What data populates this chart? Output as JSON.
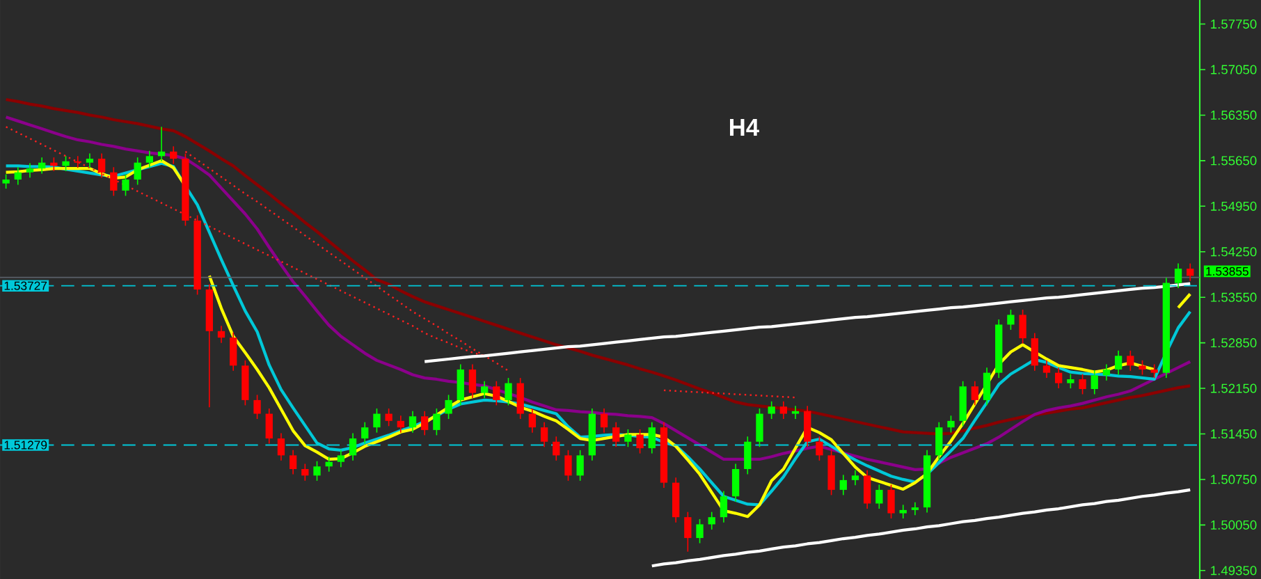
{
  "chart_data": {
    "type": "candlestick",
    "title": "H4",
    "categories": [
      null,
      null,
      null,
      null,
      null,
      null,
      null,
      null,
      null,
      null,
      null,
      null,
      null,
      null,
      null,
      null,
      null,
      null,
      null,
      null,
      null,
      null,
      null,
      null,
      null,
      null,
      null,
      null,
      null,
      null,
      null,
      null,
      null,
      null,
      null,
      null,
      null,
      null,
      null,
      null,
      null,
      null,
      null,
      null,
      null,
      null,
      null,
      null,
      null,
      null,
      null,
      null,
      null,
      null,
      null,
      null,
      null,
      null,
      null,
      null,
      null,
      null,
      null,
      null,
      null,
      null,
      null,
      null,
      null,
      null,
      null,
      null,
      null,
      null,
      null,
      null,
      null,
      null,
      null,
      null,
      null,
      null,
      null,
      null,
      null,
      null,
      null,
      null,
      null,
      null,
      null,
      null,
      null,
      null,
      null,
      null,
      null,
      null,
      null,
      null
    ],
    "ohlc": [
      [
        1.553,
        1.5544,
        1.5522,
        1.5536
      ],
      [
        1.5536,
        1.5555,
        1.5528,
        1.5547
      ],
      [
        1.5547,
        1.5561,
        1.5539,
        1.5553
      ],
      [
        1.5553,
        1.557,
        1.5545,
        1.5562
      ],
      [
        1.5562,
        1.557,
        1.5549,
        1.5557
      ],
      [
        1.5557,
        1.5572,
        1.5549,
        1.5564
      ],
      [
        1.5564,
        1.5572,
        1.5554,
        1.5562
      ],
      [
        1.5562,
        1.5576,
        1.5554,
        1.5568
      ],
      [
        1.5568,
        1.5576,
        1.5539,
        1.5547
      ],
      [
        1.5547,
        1.5555,
        1.5511,
        1.5519
      ],
      [
        1.5519,
        1.5544,
        1.5511,
        1.5536
      ],
      [
        1.5536,
        1.557,
        1.5528,
        1.5562
      ],
      [
        1.5562,
        1.558,
        1.5554,
        1.5572
      ],
      [
        1.5572,
        1.5617,
        1.5564,
        1.5579
      ],
      [
        1.5579,
        1.5587,
        1.556,
        1.5568
      ],
      [
        1.5568,
        1.5576,
        1.5465,
        1.5473
      ],
      [
        1.5473,
        1.5481,
        1.5359,
        1.5367
      ],
      [
        1.5367,
        1.5375,
        1.5186,
        1.5303
      ],
      [
        1.5303,
        1.5311,
        1.5285,
        1.5293
      ],
      [
        1.5293,
        1.5301,
        1.5242,
        1.525
      ],
      [
        1.525,
        1.5258,
        1.5189,
        1.5197
      ],
      [
        1.5197,
        1.5205,
        1.5168,
        1.5176
      ],
      [
        1.5176,
        1.5184,
        1.513,
        1.5138
      ],
      [
        1.5138,
        1.5146,
        1.5104,
        1.5112
      ],
      [
        1.5112,
        1.512,
        1.5083,
        1.5091
      ],
      [
        1.5091,
        1.5099,
        1.5073,
        1.5081
      ],
      [
        1.5081,
        1.5103,
        1.5073,
        1.5095
      ],
      [
        1.5095,
        1.511,
        1.5087,
        1.5102
      ],
      [
        1.5102,
        1.512,
        1.5094,
        1.5112
      ],
      [
        1.5112,
        1.5146,
        1.5104,
        1.5138
      ],
      [
        1.5138,
        1.5163,
        1.513,
        1.5155
      ],
      [
        1.5155,
        1.5184,
        1.5147,
        1.5176
      ],
      [
        1.5176,
        1.5184,
        1.5157,
        1.5165
      ],
      [
        1.5165,
        1.5173,
        1.5147,
        1.5155
      ],
      [
        1.5155,
        1.518,
        1.5147,
        1.5172
      ],
      [
        1.5172,
        1.518,
        1.5143,
        1.5151
      ],
      [
        1.5151,
        1.5184,
        1.5143,
        1.5176
      ],
      [
        1.5176,
        1.5205,
        1.5168,
        1.5197
      ],
      [
        1.5197,
        1.5252,
        1.5189,
        1.5244
      ],
      [
        1.5244,
        1.5252,
        1.52,
        1.5208
      ],
      [
        1.5208,
        1.5226,
        1.52,
        1.5218
      ],
      [
        1.5218,
        1.5226,
        1.5189,
        1.5197
      ],
      [
        1.5197,
        1.5231,
        1.5189,
        1.5223
      ],
      [
        1.5223,
        1.5231,
        1.5168,
        1.5176
      ],
      [
        1.5176,
        1.5184,
        1.5147,
        1.5155
      ],
      [
        1.5155,
        1.5163,
        1.5125,
        1.5133
      ],
      [
        1.5133,
        1.5141,
        1.5104,
        1.5112
      ],
      [
        1.5112,
        1.512,
        1.5073,
        1.5081
      ],
      [
        1.5081,
        1.512,
        1.5073,
        1.5112
      ],
      [
        1.5112,
        1.5184,
        1.5104,
        1.5176
      ],
      [
        1.5176,
        1.5184,
        1.5147,
        1.5155
      ],
      [
        1.5155,
        1.5163,
        1.5125,
        1.5133
      ],
      [
        1.5133,
        1.5152,
        1.5125,
        1.5144
      ],
      [
        1.5144,
        1.5152,
        1.5115,
        1.5123
      ],
      [
        1.5123,
        1.5163,
        1.5115,
        1.5155
      ],
      [
        1.5155,
        1.5163,
        1.5062,
        1.507
      ],
      [
        1.507,
        1.5078,
        1.5009,
        1.5017
      ],
      [
        1.5017,
        1.5025,
        1.4964,
        1.4985
      ],
      [
        1.4985,
        1.5014,
        1.4977,
        1.5006
      ],
      [
        1.5006,
        1.5025,
        1.4998,
        1.5017
      ],
      [
        1.5017,
        1.5057,
        1.5009,
        1.5049
      ],
      [
        1.5049,
        1.5099,
        1.5041,
        1.5091
      ],
      [
        1.5091,
        1.5141,
        1.5083,
        1.5133
      ],
      [
        1.5133,
        1.5184,
        1.5125,
        1.5176
      ],
      [
        1.5176,
        1.5195,
        1.5168,
        1.5187
      ],
      [
        1.5187,
        1.5195,
        1.5168,
        1.5176
      ],
      [
        1.5176,
        1.5188,
        1.5168,
        1.518
      ],
      [
        1.518,
        1.5188,
        1.5125,
        1.5133
      ],
      [
        1.5133,
        1.5141,
        1.5104,
        1.5112
      ],
      [
        1.5112,
        1.512,
        1.5051,
        1.5059
      ],
      [
        1.5059,
        1.5082,
        1.5051,
        1.5074
      ],
      [
        1.5074,
        1.5089,
        1.5066,
        1.5081
      ],
      [
        1.5081,
        1.5089,
        1.503,
        1.5038
      ],
      [
        1.5038,
        1.5067,
        1.503,
        1.5059
      ],
      [
        1.5059,
        1.5067,
        1.5015,
        1.5023
      ],
      [
        1.5023,
        1.5036,
        1.5015,
        1.5028
      ],
      [
        1.5028,
        1.504,
        1.502,
        1.5032
      ],
      [
        1.5032,
        1.512,
        1.5024,
        1.5112
      ],
      [
        1.5112,
        1.5163,
        1.5104,
        1.5155
      ],
      [
        1.5155,
        1.5173,
        1.5147,
        1.5165
      ],
      [
        1.5165,
        1.5226,
        1.5157,
        1.5218
      ],
      [
        1.5218,
        1.5226,
        1.5189,
        1.5197
      ],
      [
        1.5197,
        1.5247,
        1.5189,
        1.5239
      ],
      [
        1.5239,
        1.5321,
        1.5231,
        1.5313
      ],
      [
        1.5313,
        1.5336,
        1.5305,
        1.5328
      ],
      [
        1.5328,
        1.5336,
        1.5284,
        1.5292
      ],
      [
        1.5292,
        1.53,
        1.5242,
        1.525
      ],
      [
        1.525,
        1.5258,
        1.5231,
        1.5239
      ],
      [
        1.5239,
        1.5247,
        1.5215,
        1.5223
      ],
      [
        1.5223,
        1.5237,
        1.5215,
        1.5229
      ],
      [
        1.5229,
        1.5237,
        1.5206,
        1.5214
      ],
      [
        1.5214,
        1.5243,
        1.5206,
        1.5235
      ],
      [
        1.5235,
        1.5252,
        1.5227,
        1.5244
      ],
      [
        1.5244,
        1.5273,
        1.5236,
        1.5265
      ],
      [
        1.5265,
        1.5273,
        1.5242,
        1.525
      ],
      [
        1.525,
        1.5258,
        1.5236,
        1.5244
      ],
      [
        1.5244,
        1.5252,
        1.5231,
        1.5239
      ],
      [
        1.5239,
        1.5385,
        1.5231,
        1.5377
      ],
      [
        1.5377,
        1.5407,
        1.5369,
        1.5399
      ],
      [
        1.5399,
        1.5407,
        1.538,
        1.5388
      ]
    ],
    "colors": [
      "#00ff00",
      "#00ff00",
      "#00ff00",
      "#00ff00",
      "#ff0000",
      "#00ff00",
      "#ff0000",
      "#00ff00",
      "#ff0000",
      "#ff0000",
      "#00ff00",
      "#00ff00",
      "#00ff00",
      "#00ff00",
      "#ff0000",
      "#ff0000",
      "#ff0000",
      "#ff0000",
      "#ff0000",
      "#ff0000",
      "#ff0000",
      "#ff0000",
      "#ff0000",
      "#ff0000",
      "#ff0000",
      "#ff0000",
      "#00ff00",
      "#00ff00",
      "#00ff00",
      "#00ff00",
      "#00ff00",
      "#00ff00",
      "#ff0000",
      "#ff0000",
      "#00ff00",
      "#ff0000",
      "#00ff00",
      "#00ff00",
      "#00ff00",
      "#ff0000",
      "#00ff00",
      "#ff0000",
      "#00ff00",
      "#ff0000",
      "#ff0000",
      "#ff0000",
      "#ff0000",
      "#ff0000",
      "#00ff00",
      "#00ff00",
      "#ff0000",
      "#ff0000",
      "#00ff00",
      "#ff0000",
      "#00ff00",
      "#ff0000",
      "#ff0000",
      "#ff0000",
      "#00ff00",
      "#00ff00",
      "#00ff00",
      "#00ff00",
      "#00ff00",
      "#00ff00",
      "#00ff00",
      "#ff0000",
      "#00ff00",
      "#ff0000",
      "#ff0000",
      "#ff0000",
      "#00ff00",
      "#00ff00",
      "#ff0000",
      "#00ff00",
      "#ff0000",
      "#00ff00",
      "#00ff00",
      "#00ff00",
      "#00ff00",
      "#00ff00",
      "#00ff00",
      "#ff0000",
      "#00ff00",
      "#00ff00",
      "#00ff00",
      "#ff0000",
      "#ff0000",
      "#ff0000",
      "#ff0000",
      "#00ff00",
      "#ff0000",
      "#00ff00",
      "#00ff00",
      "#00ff00",
      "#ff0000",
      "#ff0000",
      "#ff0000",
      "#00ff00",
      "#00ff00",
      "#ff0000"
    ],
    "series": [
      {
        "type": "line",
        "color": "#8b0000",
        "line_style": "solid",
        "values": [
          1.5659,
          1.5656,
          1.5652,
          1.5649,
          1.5645,
          1.5642,
          1.5639,
          1.5635,
          1.5632,
          1.5628,
          1.5625,
          1.5622,
          1.5618,
          1.5614,
          1.5611,
          1.5602,
          1.5591,
          1.558,
          1.5568,
          1.5557,
          1.5542,
          1.5528,
          1.5514,
          1.5499,
          1.5485,
          1.547,
          1.5456,
          1.5441,
          1.5426,
          1.5411,
          1.5397,
          1.5382,
          1.5375,
          1.5365,
          1.5356,
          1.5348,
          1.5342,
          1.5336,
          1.533,
          1.5324,
          1.5318,
          1.5312,
          1.5306,
          1.53,
          1.5294,
          1.5288,
          1.5282,
          1.5277,
          1.5272,
          1.5266,
          1.5261,
          1.5256,
          1.5251,
          1.5245,
          1.524,
          1.5234,
          1.5228,
          1.5221,
          1.5214,
          1.5208,
          1.5201,
          1.5194,
          1.519,
          1.5188,
          1.5186,
          1.5184,
          1.5182,
          1.518,
          1.5176,
          1.5172,
          1.5168,
          1.5164,
          1.516,
          1.5156,
          1.5152,
          1.5148,
          1.5147,
          1.5146,
          1.5145,
          1.5146,
          1.515,
          1.5154,
          1.5158,
          1.5163,
          1.5167,
          1.5171,
          1.5174,
          1.5177,
          1.518,
          1.5183,
          1.5185,
          1.5189,
          1.5193,
          1.5197,
          1.5201,
          1.5204,
          1.5208,
          1.5212,
          1.5216,
          1.5219
        ]
      },
      {
        "type": "line",
        "color": "#8b008b",
        "line_style": "solid",
        "values": [
          1.5632,
          1.5626,
          1.562,
          1.5614,
          1.5608,
          1.5602,
          1.5597,
          1.5594,
          1.559,
          1.5587,
          1.5583,
          1.558,
          1.5577,
          1.5575,
          1.5573,
          1.5568,
          1.5556,
          1.5543,
          1.5523,
          1.5503,
          1.5483,
          1.546,
          1.5432,
          1.5405,
          1.5379,
          1.5357,
          1.5334,
          1.5312,
          1.5295,
          1.5282,
          1.5269,
          1.5258,
          1.5251,
          1.5244,
          1.5236,
          1.5231,
          1.5229,
          1.5226,
          1.5224,
          1.5221,
          1.5219,
          1.5213,
          1.5207,
          1.5201,
          1.5194,
          1.5188,
          1.5182,
          1.5181,
          1.5179,
          1.5178,
          1.5176,
          1.5175,
          1.5173,
          1.5172,
          1.517,
          1.5161,
          1.515,
          1.5139,
          1.5128,
          1.5117,
          1.5106,
          1.5106,
          1.5106,
          1.5106,
          1.511,
          1.5115,
          1.5119,
          1.5123,
          1.5126,
          1.5121,
          1.5116,
          1.5111,
          1.5106,
          1.5102,
          1.5098,
          1.5094,
          1.509,
          1.5091,
          1.51,
          1.5109,
          1.5116,
          1.5123,
          1.513,
          1.514,
          1.5152,
          1.5164,
          1.5175,
          1.5181,
          1.5185,
          1.5188,
          1.5192,
          1.5197,
          1.5202,
          1.5206,
          1.5211,
          1.522,
          1.5229,
          1.5238,
          1.5247,
          1.5256
        ]
      },
      {
        "type": "line",
        "color": "#00c8d8",
        "line_style": "solid",
        "values": [
          1.5557,
          1.5557,
          1.5556,
          1.5556,
          1.5555,
          1.5552,
          1.5549,
          1.5546,
          1.5543,
          1.5541,
          1.5546,
          1.5551,
          1.5556,
          1.5561,
          1.5556,
          1.5526,
          1.5497,
          1.5455,
          1.5413,
          1.5373,
          1.5334,
          1.5302,
          1.5251,
          1.5213,
          1.5185,
          1.5158,
          1.5131,
          1.5122,
          1.512,
          1.5124,
          1.5131,
          1.5137,
          1.5143,
          1.515,
          1.5156,
          1.5164,
          1.5173,
          1.5183,
          1.5191,
          1.5194,
          1.5197,
          1.5196,
          1.5194,
          1.5191,
          1.5186,
          1.5181,
          1.5176,
          1.5156,
          1.514,
          1.5141,
          1.5143,
          1.5144,
          1.5143,
          1.5141,
          1.514,
          1.5132,
          1.5127,
          1.511,
          1.5091,
          1.507,
          1.5049,
          1.5043,
          1.5037,
          1.5036,
          1.5057,
          1.5079,
          1.5107,
          1.5133,
          1.5137,
          1.5126,
          1.5115,
          1.5105,
          1.5096,
          1.5088,
          1.508,
          1.5075,
          1.5071,
          1.5083,
          1.5101,
          1.5119,
          1.5138,
          1.5166,
          1.5193,
          1.5221,
          1.5237,
          1.5248,
          1.5259,
          1.5255,
          1.5247,
          1.524,
          1.5238,
          1.5237,
          1.5236,
          1.5234,
          1.5233,
          1.5231,
          1.5229,
          1.527,
          1.5308,
          1.5333
        ]
      },
      {
        "type": "line",
        "color": "#ffff00",
        "line_style": "solid",
        "values": [
          1.5547,
          1.5548,
          1.555,
          1.5551,
          1.5553,
          1.5553,
          1.5553,
          1.5553,
          1.5545,
          1.5538,
          1.554,
          1.5551,
          1.5558,
          1.5565,
          1.5554,
          1.5526,
          null,
          1.5388,
          1.5338,
          1.5295,
          1.527,
          1.5244,
          1.5216,
          1.5183,
          1.515,
          1.5127,
          1.5117,
          1.5106,
          1.5107,
          1.5116,
          1.5126,
          1.5133,
          1.514,
          1.5148,
          1.5152,
          1.5162,
          1.5174,
          1.5186,
          1.5197,
          1.5202,
          1.5207,
          1.5203,
          1.5195,
          1.5186,
          1.518,
          1.5172,
          1.5165,
          1.5152,
          1.5138,
          1.5135,
          1.5138,
          1.5141,
          1.5144,
          1.5144,
          1.5144,
          1.514,
          1.5126,
          1.5105,
          1.5083,
          1.5055,
          1.5027,
          1.5023,
          1.5018,
          1.5036,
          1.5073,
          1.5091,
          1.5123,
          1.5155,
          1.5147,
          1.5136,
          1.5115,
          1.5094,
          1.5078,
          1.5072,
          1.5066,
          1.506,
          1.507,
          1.5084,
          1.511,
          1.5134,
          1.5161,
          1.5191,
          1.5221,
          1.5252,
          1.5271,
          1.5282,
          1.5271,
          1.526,
          1.525,
          1.5247,
          1.5244,
          1.524,
          1.5243,
          1.525,
          1.5254,
          1.5249,
          1.5244,
          null,
          1.5339,
          1.536
        ]
      },
      {
        "type": "line",
        "color": "#ff2020",
        "line_style": "dotted",
        "values": [
          1.5617,
          1.5608,
          1.5599,
          1.559,
          1.5581,
          1.5572,
          1.5563,
          1.5554,
          1.5545,
          1.5536,
          1.5527,
          1.5518,
          1.5509,
          1.55,
          1.5491,
          1.5482,
          1.5473,
          1.5464,
          1.5455,
          1.5446,
          1.5437,
          1.5428,
          1.5419,
          1.541,
          1.5401,
          1.5392,
          1.5383,
          1.5374,
          1.5365,
          1.5356,
          1.5347,
          1.5338,
          1.5329,
          1.532,
          1.5311,
          1.53,
          1.5292,
          1.5285,
          1.5277,
          1.527,
          1.5265,
          null,
          null,
          null,
          null,
          null,
          null,
          null,
          null,
          null,
          null,
          null,
          null,
          null,
          null,
          null,
          null,
          null,
          null,
          null,
          null,
          null,
          null,
          null,
          null,
          null,
          null,
          null,
          null,
          null,
          null,
          null,
          null,
          null,
          null,
          null,
          null,
          null,
          null,
          null,
          null,
          null,
          null,
          null,
          null,
          null,
          null,
          null,
          null,
          null,
          null,
          null,
          null,
          null,
          null,
          null,
          null,
          null,
          null,
          null
        ]
      },
      {
        "type": "line",
        "color": "#ff2020",
        "line_style": "dotted",
        "values": [
          null,
          null,
          null,
          null,
          null,
          null,
          null,
          null,
          null,
          null,
          null,
          null,
          null,
          null,
          null,
          1.5579,
          1.5566,
          1.5553,
          1.554,
          1.5527,
          1.5514,
          1.5502,
          1.5489,
          1.5476,
          1.5463,
          1.545,
          1.5437,
          1.5424,
          1.5411,
          1.5398,
          1.5385,
          1.5372,
          1.5359,
          1.5346,
          1.5333,
          1.5322,
          1.5311,
          1.5299,
          1.5288,
          1.5276,
          1.5265,
          1.5254,
          1.5242,
          null,
          null,
          null,
          null,
          null,
          null,
          null,
          null,
          null,
          null,
          null,
          null,
          null,
          null,
          null,
          null,
          null,
          null,
          null,
          null,
          null,
          null,
          null,
          null,
          null,
          null,
          null,
          null,
          null,
          null,
          null,
          null,
          null,
          null,
          null,
          null,
          null,
          null,
          null,
          null,
          null,
          null,
          null,
          null,
          null,
          null,
          null,
          null,
          null,
          null,
          null,
          null,
          null,
          null,
          null,
          null,
          null
        ]
      },
      {
        "type": "line",
        "color": "#ff2020",
        "line_style": "dotted",
        "values": [
          null,
          null,
          null,
          null,
          null,
          null,
          null,
          null,
          null,
          null,
          null,
          null,
          null,
          null,
          null,
          null,
          null,
          null,
          null,
          null,
          null,
          null,
          null,
          null,
          null,
          null,
          null,
          null,
          null,
          null,
          null,
          null,
          null,
          null,
          null,
          null,
          null,
          null,
          null,
          null,
          null,
          null,
          null,
          null,
          null,
          null,
          null,
          null,
          null,
          null,
          null,
          null,
          null,
          null,
          null,
          1.5212,
          1.5211,
          1.521,
          1.5209,
          1.5208,
          1.5207,
          1.5206,
          1.5205,
          1.5204,
          1.5203,
          1.5202,
          1.5201,
          null,
          null,
          null,
          null,
          null,
          null,
          null,
          null,
          null,
          null,
          null,
          null,
          null,
          null,
          null,
          null,
          null,
          null,
          null,
          null,
          null,
          null,
          null,
          null,
          null,
          null,
          null,
          null,
          null,
          null,
          null,
          null,
          null
        ]
      },
      {
        "type": "line",
        "color": "#ffffff",
        "line_style": "solid",
        "values": [
          null,
          null,
          null,
          null,
          null,
          null,
          null,
          null,
          null,
          null,
          null,
          null,
          null,
          null,
          null,
          null,
          null,
          null,
          null,
          null,
          null,
          null,
          null,
          null,
          null,
          null,
          null,
          null,
          null,
          null,
          null,
          null,
          null,
          null,
          null,
          1.5256,
          1.5258,
          1.526,
          1.5262,
          1.5264,
          1.5265,
          1.5267,
          1.5269,
          1.5271,
          1.5273,
          1.5275,
          1.5277,
          1.5279,
          1.528,
          1.5282,
          1.5284,
          1.5286,
          1.5288,
          1.529,
          1.5292,
          1.5294,
          1.5295,
          1.5297,
          1.5299,
          1.5301,
          1.5303,
          1.5305,
          1.5307,
          1.5309,
          1.531,
          1.5312,
          1.5314,
          1.5316,
          1.5318,
          1.532,
          1.5322,
          1.5324,
          1.5325,
          1.5327,
          1.5329,
          1.5331,
          1.5333,
          1.5335,
          1.5337,
          1.5339,
          1.534,
          1.5342,
          1.5344,
          1.5346,
          1.5348,
          1.535,
          1.5352,
          1.5354,
          1.5355,
          1.5357,
          1.5359,
          1.5361,
          1.5363,
          1.5365,
          1.5367,
          1.5369,
          1.537,
          1.5372,
          1.5374,
          1.5376
        ]
      },
      {
        "type": "line",
        "color": "#ffffff",
        "line_style": "solid",
        "values": [
          null,
          null,
          null,
          null,
          null,
          null,
          null,
          null,
          null,
          null,
          null,
          null,
          null,
          null,
          null,
          null,
          null,
          null,
          null,
          null,
          null,
          null,
          null,
          null,
          null,
          null,
          null,
          null,
          null,
          null,
          null,
          null,
          null,
          null,
          null,
          null,
          null,
          null,
          null,
          null,
          null,
          null,
          null,
          null,
          null,
          null,
          null,
          null,
          null,
          null,
          null,
          null,
          null,
          null,
          1.4942,
          1.4945,
          1.4947,
          1.495,
          1.4952,
          1.4955,
          1.4958,
          1.496,
          1.4963,
          1.4965,
          1.4968,
          1.4971,
          1.4973,
          1.4976,
          1.4978,
          1.4981,
          1.4984,
          1.4986,
          1.4989,
          1.4991,
          1.4994,
          1.4997,
          1.4999,
          1.5002,
          1.5004,
          1.5007,
          1.501,
          1.5012,
          1.5015,
          1.5017,
          1.502,
          1.5023,
          1.5025,
          1.5028,
          1.503,
          1.5033,
          1.5036,
          1.5038,
          1.5041,
          1.5043,
          1.5046,
          1.5049,
          1.5051,
          1.5054,
          1.5056,
          1.5059
        ]
      }
    ],
    "ref_lines": [
      {
        "axis": "y",
        "value": 1.53855,
        "label": "1.53855",
        "color": "#5a606a",
        "line_style": "solid"
      },
      {
        "axis": "y",
        "value": 1.53727,
        "label": "1.53727",
        "color": "#00c8d8",
        "line_style": "dashed"
      },
      {
        "axis": "y",
        "value": 1.51279,
        "label": "1.51279",
        "color": "#00c8d8",
        "line_style": "dashed"
      }
    ],
    "ylim": [
      1.4922,
      1.5812
    ],
    "yticks": [
      {
        "value": 1.5775,
        "label": "1.57750"
      },
      {
        "value": 1.5705,
        "label": "1.57050"
      },
      {
        "value": 1.5635,
        "label": "1.56350"
      },
      {
        "value": 1.5565,
        "label": "1.55650"
      },
      {
        "value": 1.5495,
        "label": "1.54950"
      },
      {
        "value": 1.5425,
        "label": "1.54250"
      },
      {
        "value": 1.5355,
        "label": "1.53550"
      },
      {
        "value": 1.5285,
        "label": "1.52850"
      },
      {
        "value": 1.5215,
        "label": "1.52150"
      },
      {
        "value": 1.5145,
        "label": "1.51450"
      },
      {
        "value": 1.5075,
        "label": "1.50750"
      },
      {
        "value": 1.5005,
        "label": "1.50050"
      },
      {
        "value": 1.4935,
        "label": "1.49350"
      }
    ],
    "tick_labels": "y"
  }
}
